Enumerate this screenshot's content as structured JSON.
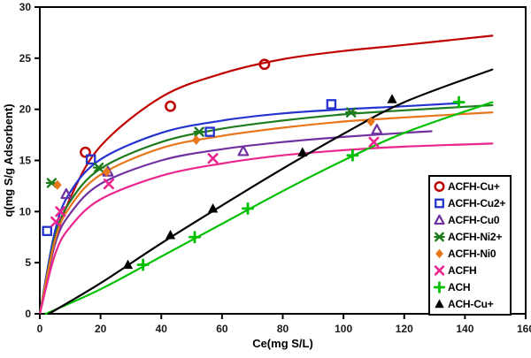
{
  "figure": {
    "background": "#ffffff",
    "frame_color": "#000000"
  },
  "chart_data": {
    "type": "scatter",
    "title": "",
    "xlabel": "Ce(mg S/L)",
    "ylabel": "q(mg  S/g Adsorbent)",
    "xlim": [
      0,
      160
    ],
    "ylim": [
      0,
      30
    ],
    "x_ticks": [
      0,
      20,
      40,
      60,
      80,
      100,
      120,
      140,
      160
    ],
    "y_ticks": [
      0,
      5,
      10,
      15,
      20,
      25,
      30
    ],
    "grid": false,
    "legend_position": "inside-right",
    "series": [
      {
        "name": "ACFH-Cu+",
        "color": "#c00000",
        "marker": "open-circle",
        "points": [
          [
            15,
            15.8
          ],
          [
            43,
            20.3
          ],
          [
            74,
            24.4
          ]
        ],
        "curve": [
          [
            0,
            0
          ],
          [
            5,
            6.9
          ],
          [
            10,
            11.3
          ],
          [
            20,
            16.4
          ],
          [
            40,
            21.2
          ],
          [
            60,
            23.5
          ],
          [
            80,
            24.9
          ],
          [
            100,
            25.7
          ],
          [
            120,
            26.3
          ],
          [
            149,
            27.2
          ]
        ]
      },
      {
        "name": "ACFH-Cu2+",
        "color": "#2433ce",
        "marker": "open-square",
        "points": [
          [
            2.4,
            8.1
          ],
          [
            16.8,
            15.1
          ],
          [
            56,
            17.8
          ],
          [
            96,
            20.5
          ]
        ],
        "curve": [
          [
            0,
            0
          ],
          [
            5,
            8.1
          ],
          [
            10,
            11.9
          ],
          [
            20,
            15.1
          ],
          [
            40,
            17.7
          ],
          [
            60,
            18.9
          ],
          [
            80,
            19.6
          ],
          [
            100,
            20.0
          ],
          [
            120,
            20.3
          ],
          [
            138,
            20.6
          ]
        ]
      },
      {
        "name": "ACFH-Cu0",
        "color": "#7030a0",
        "marker": "open-triangle",
        "points": [
          [
            8.7,
            11.7
          ],
          [
            22.4,
            13.9
          ],
          [
            67,
            15.9
          ],
          [
            111,
            18.0
          ]
        ],
        "curve": [
          [
            0,
            0
          ],
          [
            5,
            6.8
          ],
          [
            10,
            9.8
          ],
          [
            20,
            12.7
          ],
          [
            40,
            15.0
          ],
          [
            60,
            16.1
          ],
          [
            80,
            16.8
          ],
          [
            100,
            17.3
          ],
          [
            120,
            17.7
          ],
          [
            129,
            17.85
          ]
        ]
      },
      {
        "name": "ACFH-Ni2+",
        "color": "#1e7b1e",
        "marker": "star-x",
        "points": [
          [
            3.9,
            12.8
          ],
          [
            19.4,
            14.3
          ],
          [
            52.5,
            17.8
          ],
          [
            102.5,
            19.7
          ]
        ],
        "curve": [
          [
            0,
            0
          ],
          [
            5,
            7.5
          ],
          [
            10,
            11.0
          ],
          [
            20,
            14.2
          ],
          [
            40,
            16.8
          ],
          [
            60,
            18.1
          ],
          [
            80,
            18.9
          ],
          [
            100,
            19.5
          ],
          [
            120,
            19.9
          ],
          [
            149,
            20.4
          ]
        ]
      },
      {
        "name": "ACFH-Ni0",
        "color": "#e8761b",
        "marker": "diamond-filled",
        "points": [
          [
            5.8,
            12.6
          ],
          [
            22,
            13.9
          ],
          [
            51.5,
            17.0
          ],
          [
            109,
            18.8
          ]
        ],
        "curve": [
          [
            0,
            0
          ],
          [
            5,
            7.2
          ],
          [
            10,
            10.5
          ],
          [
            20,
            13.6
          ],
          [
            40,
            16.2
          ],
          [
            60,
            17.4
          ],
          [
            80,
            18.2
          ],
          [
            100,
            18.8
          ],
          [
            120,
            19.2
          ],
          [
            149,
            19.7
          ]
        ]
      },
      {
        "name": "ACFH",
        "color": "#ec268f",
        "marker": "x",
        "points": [
          [
            5.3,
            9.0
          ],
          [
            6.8,
            10.0
          ],
          [
            22.7,
            12.7
          ],
          [
            57,
            15.2
          ],
          [
            110,
            16.8
          ]
        ],
        "curve": [
          [
            0,
            0
          ],
          [
            5,
            5.8
          ],
          [
            10,
            8.5
          ],
          [
            20,
            11.2
          ],
          [
            40,
            13.5
          ],
          [
            60,
            14.7
          ],
          [
            80,
            15.5
          ],
          [
            100,
            16.0
          ],
          [
            120,
            16.35
          ],
          [
            149,
            16.65
          ]
        ]
      },
      {
        "name": "ACH",
        "color": "#00c000",
        "marker": "plus",
        "points": [
          [
            34,
            4.8
          ],
          [
            51,
            7.5
          ],
          [
            68.5,
            10.3
          ],
          [
            103,
            15.5
          ],
          [
            138,
            20.7
          ]
        ],
        "curve": [
          [
            2,
            0
          ],
          [
            20,
            2.4
          ],
          [
            40,
            5.6
          ],
          [
            60,
            8.8
          ],
          [
            80,
            12.0
          ],
          [
            100,
            15.0
          ],
          [
            120,
            17.7
          ],
          [
            149,
            20.7
          ]
        ]
      },
      {
        "name": "ACH-Cu+",
        "color": "#000000",
        "marker": "triangle-filled",
        "points": [
          [
            29,
            4.8
          ],
          [
            43,
            7.7
          ],
          [
            57,
            10.3
          ],
          [
            86.5,
            15.8
          ],
          [
            116,
            21.0
          ]
        ],
        "curve": [
          [
            3,
            0
          ],
          [
            20,
            3.0
          ],
          [
            40,
            6.9
          ],
          [
            60,
            10.6
          ],
          [
            80,
            14.2
          ],
          [
            100,
            17.6
          ],
          [
            120,
            20.7
          ],
          [
            149,
            23.9
          ]
        ]
      }
    ]
  }
}
